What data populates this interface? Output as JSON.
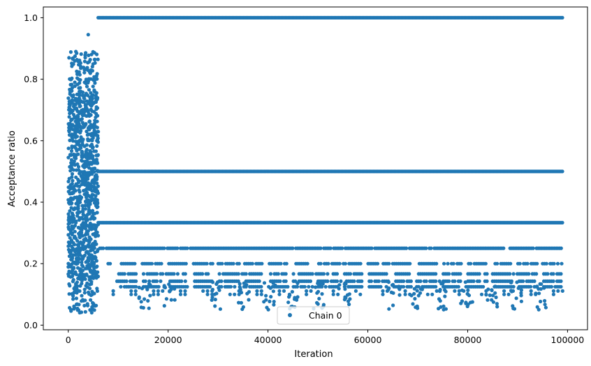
{
  "chart_data": {
    "type": "scatter",
    "title": "",
    "xlabel": "Iteration",
    "ylabel": "Acceptance ratio",
    "xlim": [
      -5000,
      104000
    ],
    "ylim": [
      -0.015,
      1.035
    ],
    "xticks": [
      0,
      20000,
      40000,
      60000,
      80000,
      100000
    ],
    "xtick_labels": [
      "0",
      "20000",
      "40000",
      "60000",
      "80000",
      "100000"
    ],
    "yticks": [
      0.0,
      0.2,
      0.4,
      0.6,
      0.8,
      1.0
    ],
    "ytick_labels": [
      "0.0",
      "0.2",
      "0.4",
      "0.6",
      "0.8",
      "1.0"
    ],
    "grid": false,
    "legend": {
      "position": "bottom-center",
      "entries": [
        "Chain 0"
      ]
    },
    "series": [
      {
        "name": "Chain 0",
        "color": "#1f77b4",
        "marker": "circle",
        "burn_in": {
          "x_range": [
            0,
            6000
          ],
          "y_range": [
            0.04,
            0.95
          ],
          "description_y_dense": [
            0.15,
            0.75
          ]
        },
        "levels": [
          {
            "y": 1.0,
            "x_range": [
              6000,
              99000
            ],
            "density": "continuous"
          },
          {
            "y": 0.5,
            "x_range": [
              6000,
              99000
            ],
            "density": "continuous"
          },
          {
            "y": 0.3333,
            "x_range": [
              6000,
              99000
            ],
            "density": "continuous"
          },
          {
            "y": 0.25,
            "x_range": [
              6000,
              99000
            ],
            "density": "dense"
          },
          {
            "y": 0.2,
            "x_range": [
              8000,
              99000
            ],
            "density": "segmented"
          },
          {
            "y": 0.1667,
            "x_range": [
              9000,
              99000
            ],
            "density": "segmented"
          },
          {
            "y": 0.1429,
            "x_range": [
              9000,
              99000
            ],
            "density": "segmented"
          },
          {
            "y": 0.125,
            "x_range": [
              9000,
              99000
            ],
            "density": "segmented"
          },
          {
            "y": 0.1111,
            "x_range": [
              9000,
              99000
            ],
            "density": "sparse"
          },
          {
            "y": 0.1,
            "x_range": [
              9000,
              99000
            ],
            "density": "sparse"
          }
        ],
        "low_excursions_x": [
          15500,
          20500,
          30000,
          35500,
          40500,
          45000,
          50500,
          55500,
          65500,
          70000,
          75000,
          80000,
          85000,
          90000,
          95000
        ]
      }
    ]
  }
}
